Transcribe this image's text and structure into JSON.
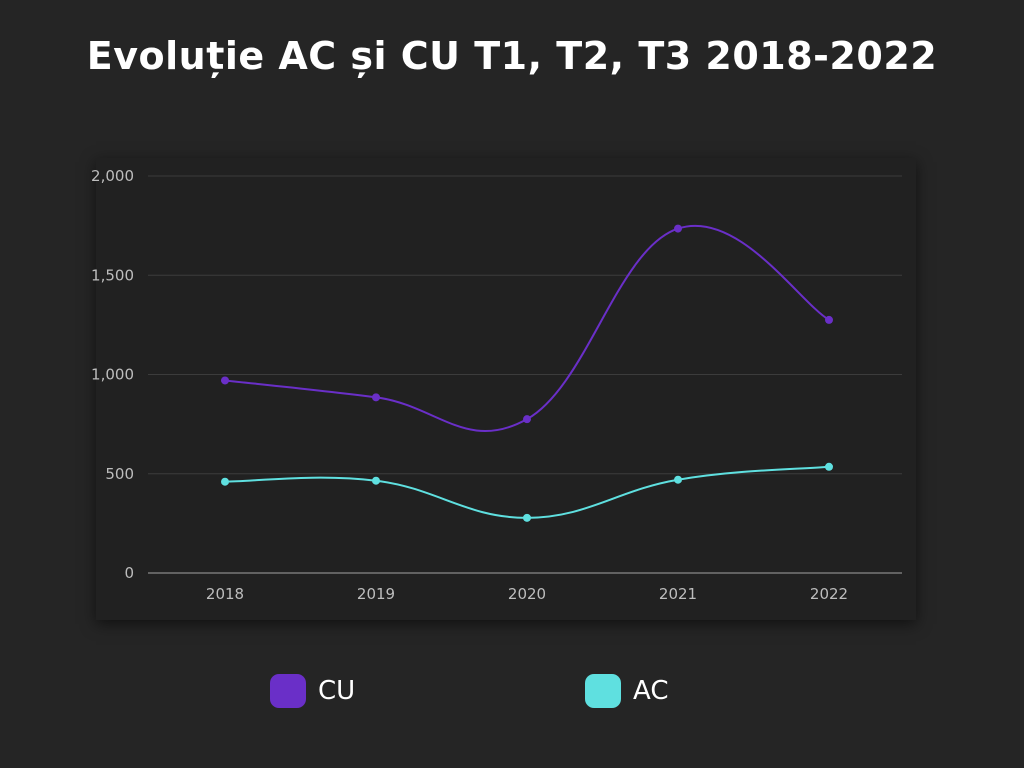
{
  "chart_data": {
    "type": "line",
    "title": "Evoluție AC și CU T1, T2, T3 2018-2022",
    "categories": [
      "2018",
      "2019",
      "2020",
      "2021",
      "2022"
    ],
    "series": [
      {
        "name": "CU",
        "values": [
          970,
          885,
          775,
          1735,
          1275
        ],
        "color": "#6a2fc8"
      },
      {
        "name": "AC",
        "values": [
          460,
          465,
          278,
          470,
          535
        ],
        "color": "#5fe0e0"
      }
    ],
    "ylim": [
      0,
      2000
    ],
    "yticks": [
      0,
      500,
      1000,
      1500,
      2000
    ],
    "ytick_labels": [
      "0",
      "500",
      "1,000",
      "1,500",
      "2,000"
    ],
    "xlabel": "",
    "ylabel": "",
    "grid": true,
    "smooth": true,
    "legend_position": "bottom",
    "background_color": "#252525",
    "panel_color": "#212121",
    "grid_color": "#3c3c3c",
    "text_color": "#bdbdbd"
  }
}
